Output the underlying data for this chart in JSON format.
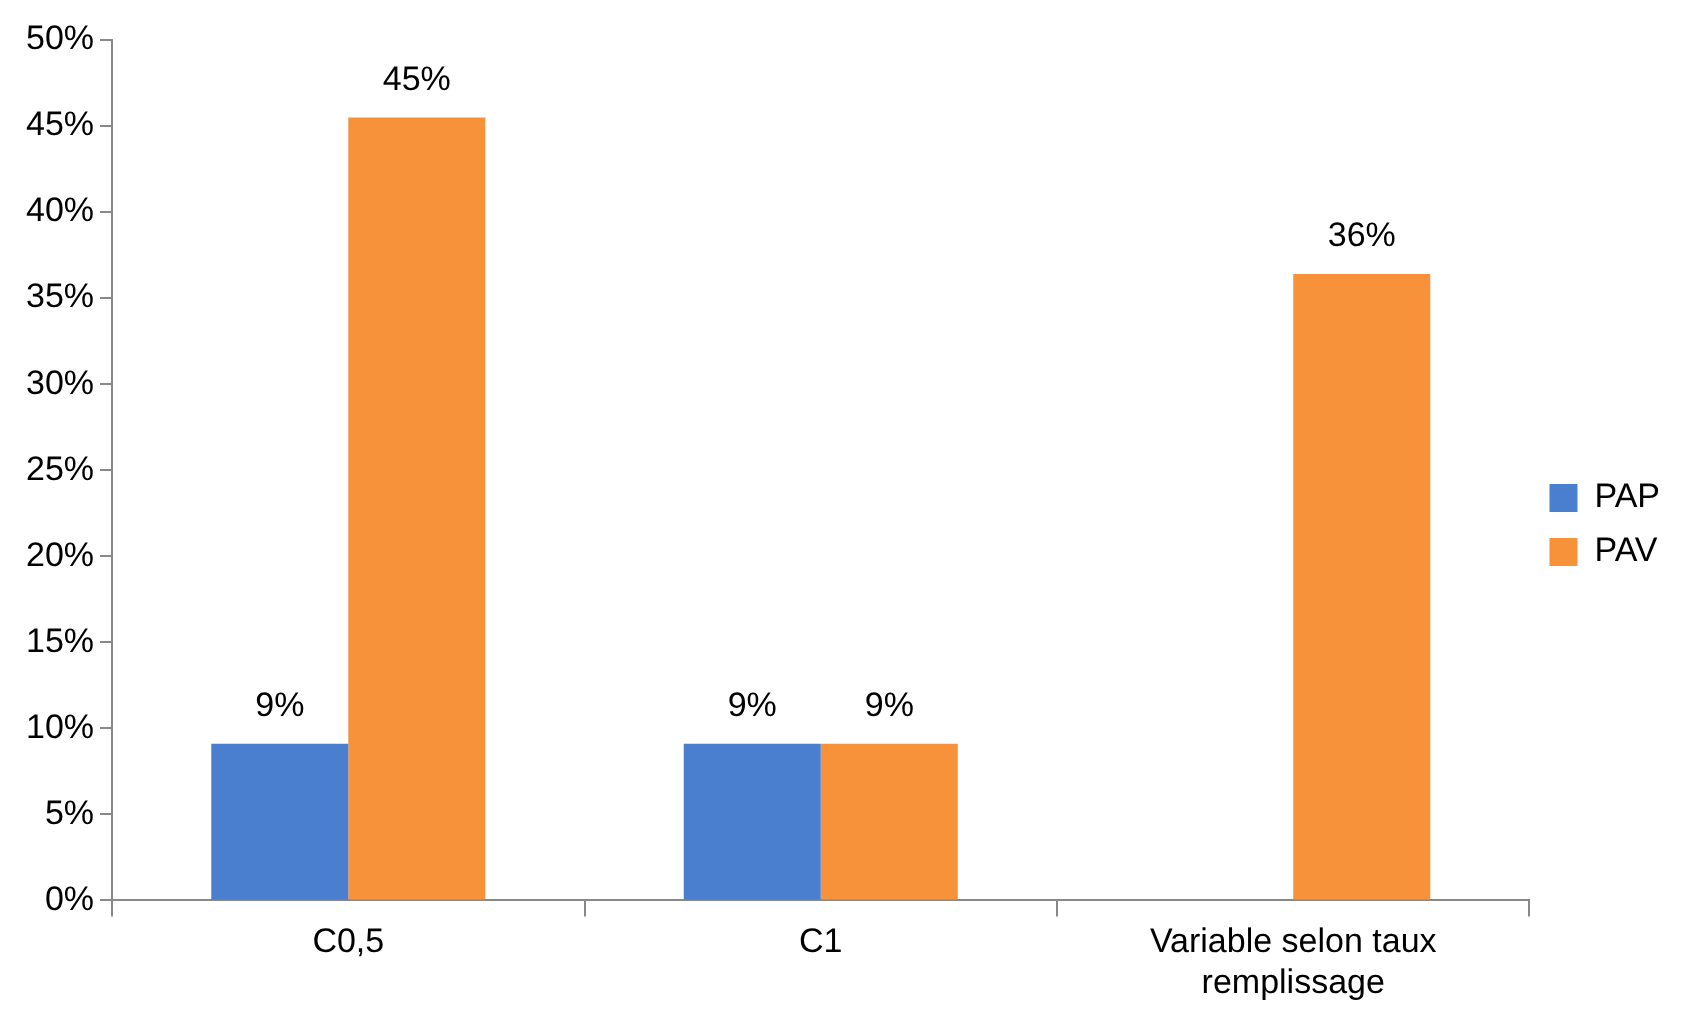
{
  "chart_data": {
    "type": "bar",
    "categories": [
      "C0,5",
      "C1",
      "Variable selon taux remplissage"
    ],
    "series": [
      {
        "name": "PAP",
        "color": "#4a7fd0",
        "values": [
          9.1,
          9.1,
          null
        ],
        "value_labels": [
          "9%",
          "9%",
          null
        ]
      },
      {
        "name": "PAV",
        "color": "#f7923a",
        "values": [
          45.5,
          9.1,
          36.4
        ],
        "value_labels": [
          "45%",
          "9%",
          "36%"
        ]
      }
    ],
    "ylim": [
      0,
      50
    ],
    "yticks": [
      {
        "value": 0,
        "label": "0%"
      },
      {
        "value": 5,
        "label": "5%"
      },
      {
        "value": 10,
        "label": "10%"
      },
      {
        "value": 15,
        "label": "15%"
      },
      {
        "value": 20,
        "label": "20%"
      },
      {
        "value": 25,
        "label": "25%"
      },
      {
        "value": 30,
        "label": "30%"
      },
      {
        "value": 35,
        "label": "35%"
      },
      {
        "value": 40,
        "label": "40%"
      },
      {
        "value": 45,
        "label": "45%"
      },
      {
        "value": 50,
        "label": "50%"
      }
    ],
    "grid": false,
    "legend": "right"
  }
}
